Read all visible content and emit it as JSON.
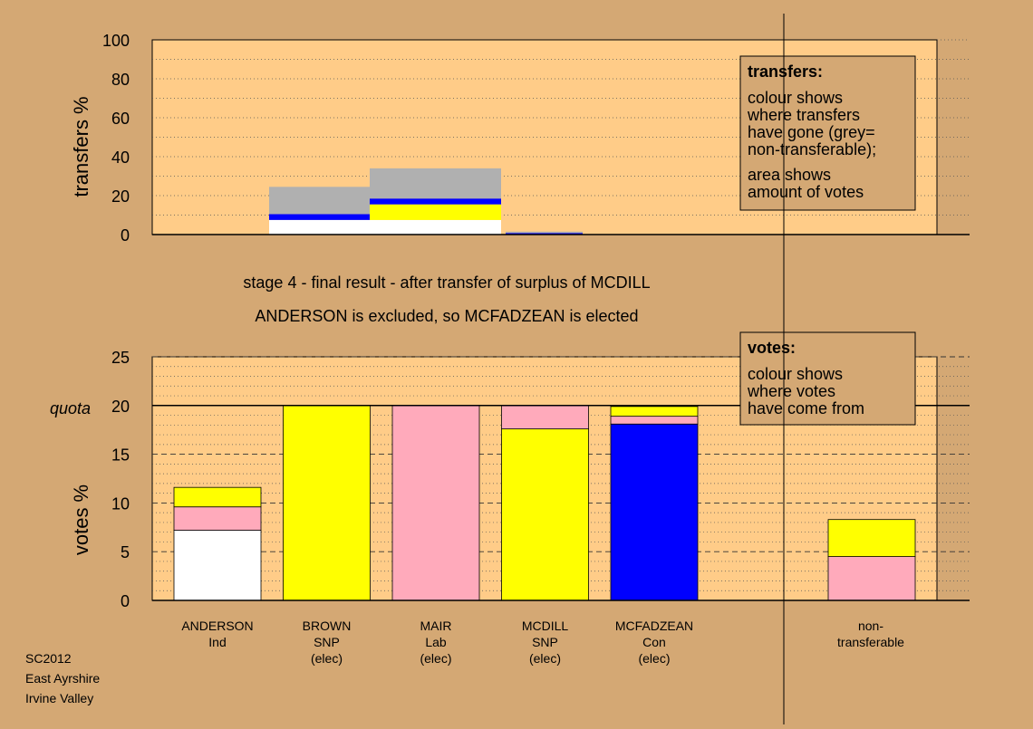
{
  "colors": {
    "background": "#d4a874",
    "panel": "#ffcc88",
    "white": "#ffffff",
    "pink": "#ffaabb",
    "yellow": "#ffff00",
    "blue": "#0000ff",
    "grey": "#b0b0b0",
    "box": "#d4a874"
  },
  "headline": {
    "line1": "stage 4 - final result - after transfer of surplus of MCDILL",
    "line2": "ANDERSON is excluded, so MCFADZEAN is elected"
  },
  "footer": [
    "SC2012",
    "East Ayrshire",
    "Irvine Valley"
  ],
  "transfers_box": {
    "title": "transfers:",
    "lines": [
      "colour shows",
      "where transfers",
      "have gone (grey=",
      "non-transferable);"
    ],
    "lines2": [
      "area shows",
      "amount of votes"
    ]
  },
  "votes_box": {
    "title": "votes:",
    "lines": [
      "colour shows",
      "where votes",
      "have come from"
    ]
  },
  "chart_data": [
    {
      "type": "bar",
      "name": "transfers",
      "ylabel": "transfers %",
      "ylim": [
        0,
        100
      ],
      "yticks": [
        0,
        20,
        40,
        60,
        80,
        100
      ],
      "grid": "dotted every 10",
      "legend": "top-right",
      "groups": [
        {
          "column": "BROWN",
          "total_transferred": 24.5,
          "segments": [
            {
              "color": "white",
              "value": 7.5
            },
            {
              "color": "blue",
              "value": 3.0
            },
            {
              "color": "grey",
              "value": 14.0
            }
          ]
        },
        {
          "column": "MAIR",
          "total_transferred": 34.0,
          "segments": [
            {
              "color": "white",
              "value": 7.5
            },
            {
              "color": "yellow",
              "value": 8.0
            },
            {
              "color": "blue",
              "value": 3.0
            },
            {
              "color": "grey",
              "value": 15.5
            }
          ]
        },
        {
          "column": "MCDILL",
          "total_transferred": 1.5,
          "segments": [
            {
              "color": "blue",
              "value": 0.8
            },
            {
              "color": "grey",
              "value": 0.7
            }
          ]
        }
      ]
    },
    {
      "type": "bar",
      "name": "votes",
      "ylabel": "votes %",
      "ylim": [
        0,
        25
      ],
      "yticks": [
        0,
        5,
        10,
        15,
        20,
        25
      ],
      "quota": {
        "label": "quota",
        "value": 20
      },
      "legend": "top-right",
      "candidates": [
        {
          "name": "ANDERSON",
          "party": "Ind",
          "status": "",
          "segments": [
            {
              "color": "white",
              "value": 7.2
            },
            {
              "color": "pink",
              "value": 2.4
            },
            {
              "color": "yellow",
              "value": 2.0
            }
          ]
        },
        {
          "name": "BROWN",
          "party": "SNP",
          "status": "(elec)",
          "segments": [
            {
              "color": "yellow",
              "value": 20.0
            }
          ]
        },
        {
          "name": "MAIR",
          "party": "Lab",
          "status": "(elec)",
          "segments": [
            {
              "color": "pink",
              "value": 20.0
            }
          ]
        },
        {
          "name": "MCDILL",
          "party": "SNP",
          "status": "(elec)",
          "segments": [
            {
              "color": "yellow",
              "value": 17.6
            },
            {
              "color": "pink",
              "value": 2.4
            }
          ]
        },
        {
          "name": "MCFADZEAN",
          "party": "Con",
          "status": "(elec)",
          "segments": [
            {
              "color": "blue",
              "value": 18.1
            },
            {
              "color": "pink",
              "value": 0.8
            },
            {
              "color": "yellow",
              "value": 1.0
            }
          ]
        }
      ],
      "nontransferable": {
        "label1": "non-",
        "label2": "transferable",
        "segments": [
          {
            "color": "pink",
            "value": 4.5
          },
          {
            "color": "yellow",
            "value": 3.8
          }
        ]
      }
    }
  ]
}
